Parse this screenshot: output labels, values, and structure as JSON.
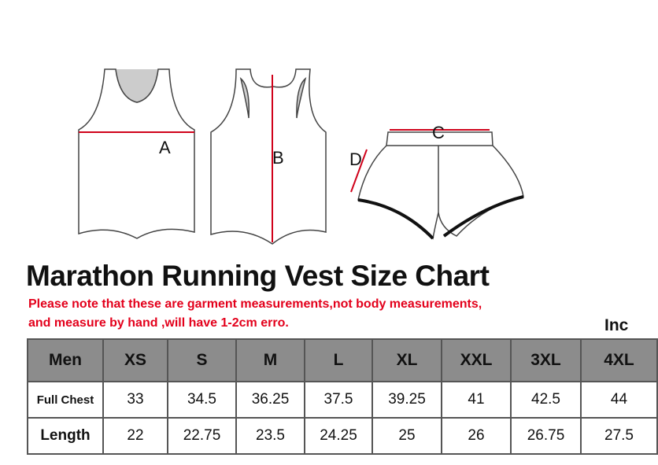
{
  "diagram": {
    "labels": [
      "A",
      "B",
      "C",
      "D"
    ]
  },
  "title": "Marathon Running Vest Size Chart",
  "note": [
    "Please note that these are garment measurements,not  body measurements,",
    "and measure by hand ,will have 1-2cm erro."
  ],
  "unit": "Inc",
  "table": {
    "header": [
      "Men",
      "XS",
      "S",
      "M",
      "L",
      "XL",
      "XXL",
      "3XL",
      "4XL"
    ],
    "rows": [
      [
        "Full Chest",
        33,
        34.5,
        36.25,
        37.5,
        39.25,
        41,
        42.5,
        44
      ],
      [
        "Length",
        22,
        22.75,
        23.5,
        24.25,
        25,
        26,
        26.75,
        27.5
      ]
    ]
  }
}
